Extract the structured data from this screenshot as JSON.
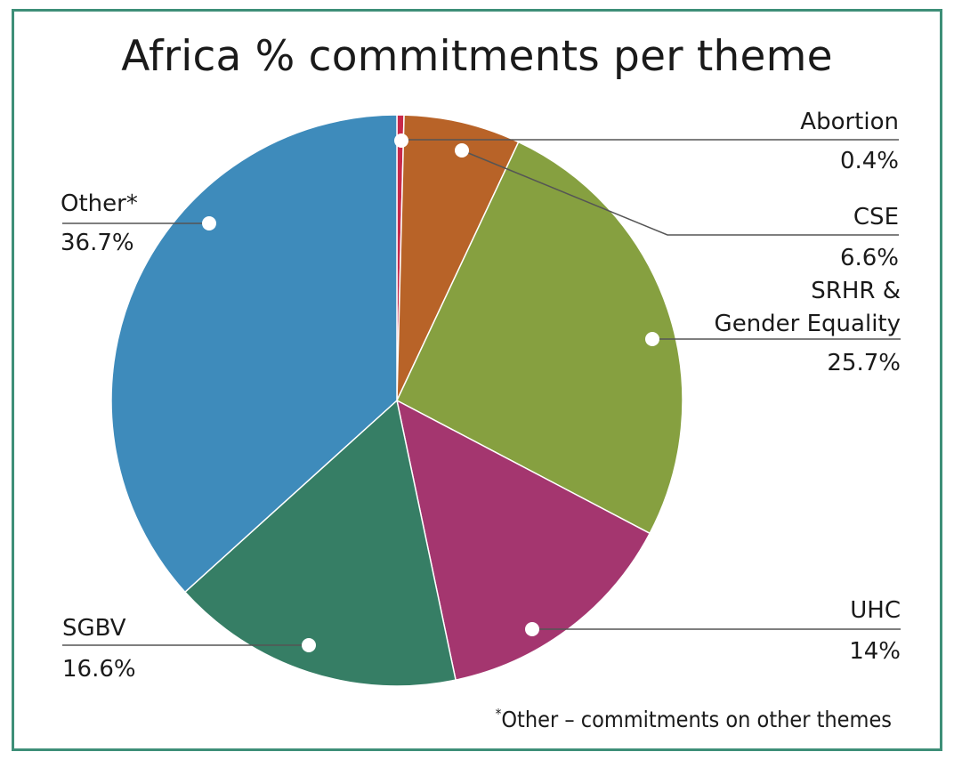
{
  "chart_data": {
    "type": "pie",
    "title": "Africa % commitments per theme",
    "slices": [
      {
        "label": "Abortion",
        "value": 0.4,
        "value_label": "0.4%",
        "color": "#c8284a"
      },
      {
        "label": "CSE",
        "value": 6.6,
        "value_label": "6.6%",
        "color": "#b86328"
      },
      {
        "label": "SRHR &",
        "label2": "Gender Equality",
        "value": 25.7,
        "value_label": "25.7%",
        "color": "#86a040"
      },
      {
        "label": "UHC",
        "value": 14,
        "value_label": "14%",
        "color": "#a4366f"
      },
      {
        "label": "SGBV",
        "value": 16.6,
        "value_label": "16.6%",
        "color": "#367e65"
      },
      {
        "label": "Other*",
        "value": 36.7,
        "value_label": "36.7%",
        "color": "#3e8bbb"
      }
    ],
    "footnote_mark": "*",
    "footnote": "Other – commitments on other themes"
  },
  "colors": {
    "frame": "#3e8f78",
    "leader": "#555555"
  }
}
